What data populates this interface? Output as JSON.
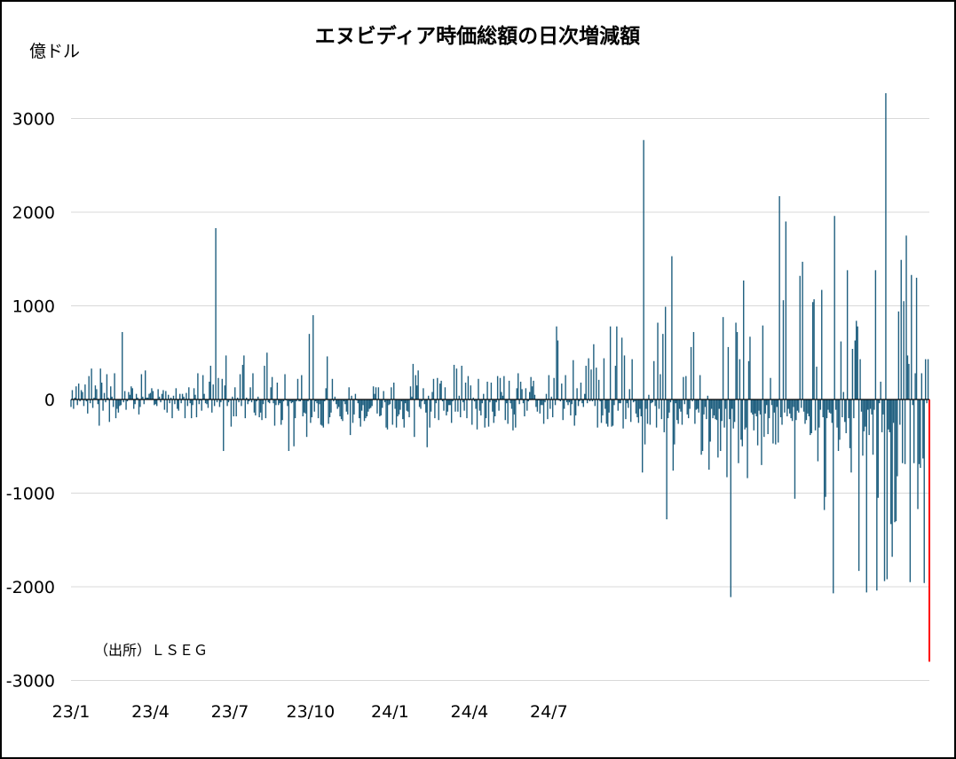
{
  "chart_data": {
    "type": "bar",
    "title": "エヌビディア時価総額の日次増減額",
    "ylabel": "億ドル",
    "source_note": "（出所）ＬＳＥＧ",
    "ylim": [
      -3000,
      3300
    ],
    "yticks": [
      3000,
      2000,
      1000,
      0,
      -1000,
      -2000,
      -3000
    ],
    "x_tick_labels": [
      "23/1",
      "23/4",
      "23/7",
      "23/10",
      "24/1",
      "24/4",
      "24/7"
    ],
    "x_tick_index": [
      0,
      62,
      124,
      187,
      249,
      311,
      373
    ],
    "grid": "horizontal",
    "colors": {
      "bar": "#1f5f7f",
      "latest": "#ff0000",
      "grid": "#d9d9d9",
      "axis": "#000000"
    },
    "series": [
      {
        "values": [
          -80,
          100,
          -100,
          20,
          140,
          -60,
          170,
          -20,
          100,
          80,
          -70,
          160,
          -20,
          -150,
          250,
          -40,
          330,
          -90,
          20,
          150,
          110,
          -50,
          -280,
          330,
          180,
          -120,
          70,
          -30,
          270,
          20,
          -240,
          140,
          30,
          -80,
          280,
          -200,
          -100,
          -140,
          -70,
          -60,
          720,
          -30,
          90,
          -110,
          -20,
          80,
          50,
          140,
          120,
          -100,
          -50,
          60,
          20,
          -160,
          -80,
          270,
          30,
          -50,
          310,
          20,
          20,
          60,
          70,
          120,
          90,
          -60,
          -50,
          -70,
          110,
          30,
          -30,
          60,
          100,
          -110,
          90,
          -140,
          50,
          -40,
          20,
          -200,
          40,
          -50,
          120,
          -100,
          -120,
          60,
          -40,
          60,
          30,
          -200,
          70,
          -70,
          130,
          -40,
          -200,
          -60,
          120,
          50,
          -190,
          280,
          -50,
          -10,
          -120,
          260,
          60,
          -40,
          -50,
          -90,
          190,
          360,
          -140,
          160,
          -70,
          1830,
          -30,
          230,
          -80,
          -30,
          220,
          -550,
          150,
          470,
          -70,
          -30,
          -10,
          -290,
          30,
          -180,
          130,
          -180,
          20,
          -30,
          270,
          -70,
          370,
          470,
          -200,
          20,
          -50,
          -20,
          130,
          -30,
          280,
          -140,
          -170,
          -20,
          30,
          -190,
          -140,
          -220,
          -50,
          360,
          -200,
          500,
          -30,
          -40,
          130,
          240,
          -40,
          -280,
          -60,
          180,
          -60,
          -40,
          -270,
          -220,
          -20,
          270,
          -10,
          -70,
          -550,
          -20,
          -40,
          -30,
          -500,
          -200,
          -20,
          220,
          -20,
          -20,
          260,
          -180,
          -140,
          -150,
          -400,
          -20,
          700,
          -250,
          -190,
          900,
          -130,
          -20,
          -40,
          -200,
          -50,
          -270,
          -280,
          -300,
          -20,
          120,
          460,
          -260,
          -190,
          -140,
          220,
          -20,
          30,
          -50,
          -100,
          -80,
          -180,
          -210,
          -230,
          -20,
          -50,
          -130,
          -160,
          130,
          -380,
          40,
          -250,
          -160,
          60,
          -10,
          -40,
          -200,
          -290,
          -120,
          -60,
          -230,
          -200,
          -180,
          -130,
          -100,
          -90,
          -70,
          140,
          60,
          130,
          -150,
          130,
          -180,
          -170,
          -90,
          90,
          -30,
          -300,
          -320,
          -60,
          -50,
          130,
          -270,
          180,
          -100,
          -300,
          -180,
          -160,
          -110,
          -20,
          -210,
          -300,
          -40,
          -120,
          -130,
          -190,
          140,
          30,
          380,
          -400,
          260,
          150,
          310,
          -80,
          -100,
          -20,
          120,
          -50,
          -140,
          -510,
          40,
          -300,
          -130,
          80,
          220,
          -200,
          -40,
          230,
          -220,
          170,
          200,
          -20,
          -120,
          130,
          -170,
          -130,
          -60,
          -60,
          -250,
          -20,
          370,
          -130,
          330,
          -130,
          40,
          -190,
          360,
          -30,
          -120,
          180,
          -200,
          250,
          -10,
          150,
          -270,
          20,
          -20,
          -100,
          -320,
          220,
          -120,
          -170,
          -40,
          60,
          -300,
          -200,
          190,
          -290,
          -30,
          180,
          -130,
          -250,
          -180,
          -30,
          250,
          -120,
          230,
          80,
          40,
          250,
          -220,
          -40,
          -260,
          200,
          -40,
          -100,
          -330,
          -160,
          -300,
          120,
          280,
          -50,
          190,
          110,
          -40,
          -180,
          120,
          -120,
          -20,
          80,
          240,
          140,
          200,
          50,
          -80,
          -130,
          -10,
          -150,
          -60,
          -60,
          -260,
          -30,
          60,
          -210,
          260,
          -100,
          30,
          -190,
          230,
          -60,
          780,
          630,
          -10,
          -20,
          170,
          -220,
          -100,
          260,
          -30,
          -60,
          -30,
          -170,
          -50,
          420,
          -280,
          -170,
          120,
          -70,
          -20,
          180,
          -40,
          -80,
          60,
          360,
          -40,
          440,
          -20,
          320,
          -20,
          590,
          -70,
          340,
          -300,
          210,
          -20,
          -250,
          -170,
          440,
          -100,
          -260,
          -290,
          -140,
          780,
          -290,
          -280,
          -60,
          360,
          780,
          -120,
          -40,
          -40,
          660,
          -310,
          470,
          -210,
          -40,
          -90,
          110,
          -240,
          430,
          -30,
          -20,
          -150,
          -190,
          -250,
          -100,
          -180,
          -780,
          2770,
          -480,
          -100,
          -260,
          50,
          -270,
          -40,
          -30,
          410,
          -70,
          -300,
          820,
          -100,
          270,
          -210,
          700,
          -350,
          990,
          -1280,
          -200,
          -140,
          -30,
          1530,
          -760,
          -480,
          -40,
          -220,
          -260,
          -100,
          -130,
          -270,
          240,
          -50,
          250,
          -160,
          -200,
          -100,
          560,
          -20,
          720,
          -260,
          -110,
          -100,
          -140,
          260,
          -590,
          -550,
          -160,
          -80,
          -210,
          40,
          -750,
          -450,
          -100,
          -200,
          -170,
          -210,
          -220,
          -620,
          -100,
          -550,
          -230,
          880,
          -300,
          -100,
          -830,
          560,
          -210,
          -2110,
          -100,
          -310,
          -240,
          820,
          720,
          -680,
          430,
          -430,
          -500,
          1270,
          -320,
          -300,
          -840,
          410,
          670,
          -140,
          -160,
          -330,
          -150,
          -180,
          -490,
          -120,
          -160,
          -700,
          790,
          -400,
          -150,
          -60,
          -370,
          -200,
          230,
          -60,
          -470,
          -140,
          -480,
          -80,
          -460,
          2170,
          -190,
          -270,
          1060,
          -140,
          1900,
          -180,
          -100,
          -150,
          -200,
          -230,
          -80,
          -1060,
          -220,
          -120,
          -140,
          1320,
          -90,
          1470,
          -130,
          -260,
          -220,
          -150,
          -180,
          -380,
          -360,
          1040,
          1070,
          -330,
          350,
          -660,
          -300,
          -110,
          1170,
          -190,
          -1180,
          -1040,
          -200,
          -110,
          -140,
          -150,
          -250,
          -2070,
          1960,
          -110,
          -300,
          -550,
          -430,
          620,
          -190,
          80,
          -240,
          -360,
          1380,
          -200,
          -520,
          -780,
          540,
          -200,
          630,
          840,
          780,
          -1830,
          430,
          -130,
          -600,
          -340,
          -290,
          -2060,
          -110,
          -380,
          -100,
          -160,
          -590,
          -110,
          1380,
          -2040,
          -1050,
          -40,
          190,
          -350,
          -160,
          -1940,
          3270,
          -1920,
          -320,
          -350,
          -1330,
          -1680,
          -250,
          -1310,
          -1300,
          -820,
          940,
          -270,
          1490,
          -680,
          1050,
          -690,
          1750,
          470,
          380,
          -1950,
          1330,
          -60,
          -680,
          280,
          1300,
          -1170,
          -690,
          -730,
          280,
          -630,
          -1960,
          430,
          -40,
          430,
          -2800
        ]
      }
    ]
  }
}
